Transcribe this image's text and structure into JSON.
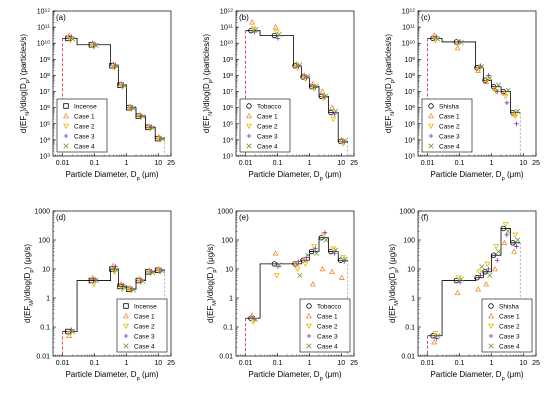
{
  "markers": {
    "base": {
      "shape": "square",
      "color": "#000000"
    },
    "case1": {
      "shape": "triangle-up",
      "color": "#f28e2b"
    },
    "case2": {
      "shape": "triangle-down",
      "color": "#e6b800"
    },
    "case3": {
      "shape": "plus",
      "color": "#7b2fbe"
    },
    "case4": {
      "shape": "x",
      "color": "#6a9e3a"
    }
  },
  "chart_data": [
    {
      "type": "line",
      "label": "(a)",
      "ylabel": "d(EF_N)/dlog(D_p) (particles/s)",
      "xlabel": "Particle Diameter, D_p (μm)",
      "xscale": "log",
      "yscale": "log",
      "xlim": [
        0.005,
        25
      ],
      "ylim": [
        1000,
        1000000000000.0
      ],
      "xticks": [
        "0.01",
        "0.1",
        "1",
        "10",
        "25"
      ],
      "yticks": [
        "10^3",
        "10^4",
        "10^5",
        "10^6",
        "10^7",
        "10^8",
        "10^9",
        "10^10",
        "10^11",
        "10^12"
      ],
      "step_edges": [
        0.01,
        0.0284,
        0.32,
        0.56,
        1.0,
        2.0,
        4.0,
        8.0,
        16.0
      ],
      "step_values": [
        20000000000.0,
        8000000000.0,
        400000000.0,
        25000000.0,
        1000000.0,
        300000.0,
        60000.0,
        12000.0
      ],
      "base_name": "Incense",
      "x": [
        0.0175,
        0.095,
        0.42,
        0.75,
        1.4,
        2.8,
        5.6,
        11.3
      ],
      "series": [
        {
          "name": "Incense",
          "values": [
            20000000000.0,
            8000000000.0,
            400000000.0,
            25000000.0,
            1000000.0,
            300000.0,
            60000.0,
            12000.0
          ]
        },
        {
          "name": "Case 1",
          "values": [
            30000000000.0,
            10000000000.0,
            500000000.0,
            30000000.0,
            1200000.0,
            350000.0,
            70000.0,
            15000.0
          ]
        },
        {
          "name": "Case 2",
          "values": [
            15000000000.0,
            6000000000.0,
            300000000.0,
            20000000.0,
            800000.0,
            250000.0,
            50000.0,
            10000.0
          ]
        },
        {
          "name": "Case 3",
          "values": [
            25000000000.0,
            9000000000.0,
            450000000.0,
            27000000.0,
            1100000.0,
            320000.0,
            65000.0,
            13000.0
          ]
        },
        {
          "name": "Case 4",
          "values": [
            18000000000.0,
            7000000000.0,
            350000000.0,
            22000000.0,
            900000.0,
            280000.0,
            55000.0,
            11000.0
          ]
        }
      ],
      "legend": [
        "Incense",
        "Case 1",
        "Case 2",
        "Case 3",
        "Case 4"
      ],
      "legend_position": "bottom-left"
    },
    {
      "type": "line",
      "label": "(b)",
      "ylabel": "d(EF_N)/dlog(D_p) (particles/s)",
      "xlabel": "Particle Diameter, D_p (μm)",
      "xscale": "log",
      "yscale": "log",
      "xlim": [
        0.005,
        25
      ],
      "ylim": [
        1000,
        1000000000000.0
      ],
      "xticks": [
        "0.01",
        "0.1",
        "1",
        "10",
        "25"
      ],
      "yticks": [
        "10^3",
        "10^4",
        "10^5",
        "10^6",
        "10^7",
        "10^8",
        "10^9",
        "10^10",
        "10^11",
        "10^12"
      ],
      "step_edges": [
        0.01,
        0.0284,
        0.32,
        0.56,
        1.0,
        2.0,
        4.0,
        8.0,
        16.0
      ],
      "step_values": [
        60000000000.0,
        30000000000.0,
        400000000.0,
        80000000.0,
        20000000.0,
        5000000.0,
        500000.0,
        8000.0
      ],
      "base_name": "Tobacco",
      "x": [
        0.0175,
        0.095,
        0.42,
        0.75,
        1.4,
        2.8,
        5.6,
        11.3
      ],
      "series": [
        {
          "name": "Tobacco",
          "values": [
            60000000000.0,
            30000000000.0,
            400000000.0,
            80000000.0,
            20000000.0,
            5000000.0,
            500000.0,
            8000.0
          ]
        },
        {
          "name": "Case 1",
          "values": [
            200000000000.0,
            100000000000.0,
            500000000.0,
            100000000.0,
            30000000.0,
            10000000.0,
            1000000.0,
            10000.0
          ]
        },
        {
          "name": "Case 2",
          "values": [
            80000000000.0,
            50000000000.0,
            300000000.0,
            60000000.0,
            15000000.0,
            4000000.0,
            200000.0,
            6000.0
          ]
        },
        {
          "name": "Case 3",
          "values": [
            50000000000.0,
            20000000000.0,
            350000000.0,
            70000000.0,
            18000000.0,
            4500000.0,
            400000.0,
            7000.0
          ]
        },
        {
          "name": "Case 4",
          "values": [
            70000000000.0,
            35000000000.0,
            450000000.0,
            90000000.0,
            22000000.0,
            5500000.0,
            600000.0,
            9000.0
          ]
        }
      ],
      "legend": [
        "Tobacco",
        "Case 1",
        "Case 2",
        "Case 3",
        "Case 4"
      ],
      "legend_position": "bottom-left"
    },
    {
      "type": "line",
      "label": "(c)",
      "ylabel": "d(EF_N)/dlog(D_p) (particles/s)",
      "xlabel": "Particle Diameter, D_p (μm)",
      "xscale": "log",
      "yscale": "log",
      "xlim": [
        0.005,
        25
      ],
      "ylim": [
        1000,
        1000000000000.0
      ],
      "xticks": [
        "0.01",
        "0.1",
        "1",
        "10",
        "25"
      ],
      "yticks": [
        "10^3",
        "10^4",
        "10^5",
        "10^6",
        "10^7",
        "10^8",
        "10^9",
        "10^10",
        "10^11",
        "10^12"
      ],
      "step_edges": [
        0.01,
        0.0284,
        0.32,
        0.56,
        1.0,
        2.0,
        4.0,
        8.0
      ],
      "step_values": [
        20000000000.0,
        12000000000.0,
        300000000.0,
        50000000.0,
        20000000.0,
        10000000.0,
        500000.0
      ],
      "base_name": "Shisha",
      "x": [
        0.0175,
        0.095,
        0.42,
        0.75,
        1.4,
        2.8,
        5.6
      ],
      "series": [
        {
          "name": "Shisha",
          "values": [
            20000000000.0,
            12000000000.0,
            300000000.0,
            50000000.0,
            20000000.0,
            10000000.0,
            500000.0
          ]
        },
        {
          "name": "Case 1",
          "values": [
            30000000000.0,
            5000000000.0,
            200000000.0,
            40000000.0,
            15000000.0,
            8000000.0,
            400000.0
          ]
        },
        {
          "name": "Case 2",
          "values": [
            15000000000.0,
            10000000000.0,
            250000000.0,
            60000000.0,
            10000000.0,
            5000000.0,
            300000.0
          ]
        },
        {
          "name": "Case 3",
          "values": [
            25000000000.0,
            13000000000.0,
            400000000.0,
            100000000.0,
            10000000.0,
            2000000.0,
            100000.0
          ]
        },
        {
          "name": "Case 4",
          "values": [
            18000000000.0,
            11000000000.0,
            350000000.0,
            70000000.0,
            25000000.0,
            12000000.0,
            600000.0
          ]
        }
      ],
      "legend": [
        "Shisha",
        "Case 1",
        "Case 2",
        "Case 3",
        "Case 4"
      ],
      "legend_position": "bottom-left"
    },
    {
      "type": "line",
      "label": "(d)",
      "ylabel": "d(EF_M)/dlog(D_p) (μg/s)",
      "xlabel": "Particle Diameter, D_p (μm)",
      "xscale": "log",
      "yscale": "log",
      "xlim": [
        0.005,
        25
      ],
      "ylim": [
        0.01,
        1000
      ],
      "xticks": [
        "0.01",
        "0.1",
        "1",
        "10",
        "25"
      ],
      "yticks": [
        "0.01",
        "0.1",
        "1",
        "10",
        "100",
        "1000"
      ],
      "step_edges": [
        0.01,
        0.0284,
        0.32,
        0.56,
        1.0,
        2.0,
        4.0,
        8.0,
        16.0
      ],
      "step_values": [
        0.07,
        4,
        10,
        2.5,
        2,
        4,
        8,
        9
      ],
      "base_name": "Incense",
      "x": [
        0.0175,
        0.095,
        0.42,
        0.75,
        1.4,
        2.8,
        5.6,
        11.3
      ],
      "series": [
        {
          "name": "Incense",
          "values": [
            0.07,
            4,
            10,
            2.5,
            2,
            4,
            8,
            9
          ]
        },
        {
          "name": "Case 1",
          "values": [
            0.05,
            5,
            13,
            3,
            2.2,
            4.5,
            9,
            10
          ]
        },
        {
          "name": "Case 2",
          "values": [
            0.06,
            3,
            8,
            2,
            1.8,
            3.5,
            7,
            8
          ]
        },
        {
          "name": "Case 3",
          "values": [
            0.08,
            4.5,
            12,
            2.8,
            2.1,
            4.2,
            8.5,
            9.5
          ]
        },
        {
          "name": "Case 4",
          "values": [
            0.07,
            4,
            9,
            2.3,
            1.9,
            3.8,
            7.5,
            8.5
          ]
        }
      ],
      "legend": [
        "Incense",
        "Case 1",
        "Case 2",
        "Case 3",
        "Case 4"
      ],
      "legend_position": "bottom-right"
    },
    {
      "type": "line",
      "label": "(e)",
      "ylabel": "d(EF_M)/dlog(D_p) (μg/s)",
      "xlabel": "Particle Diameter, D_p (μm)",
      "xscale": "log",
      "yscale": "log",
      "xlim": [
        0.005,
        25
      ],
      "ylim": [
        0.01,
        1000
      ],
      "xticks": [
        "0.01",
        "0.1",
        "1",
        "10",
        "25"
      ],
      "yticks": [
        "0.01",
        "0.1",
        "1",
        "10",
        "100",
        "1000"
      ],
      "step_edges": [
        0.01,
        0.0284,
        0.32,
        0.56,
        1.0,
        2.0,
        4.0,
        8.0,
        16.0
      ],
      "step_values": [
        0.2,
        15,
        15,
        20,
        40,
        120,
        40,
        20
      ],
      "base_name": "Tobacco",
      "x": [
        0.0175,
        0.095,
        0.42,
        0.75,
        1.4,
        2.8,
        5.6,
        11.3
      ],
      "series": [
        {
          "name": "Tobacco",
          "values": [
            0.2,
            15,
            15,
            20,
            40,
            120,
            40,
            20
          ]
        },
        {
          "name": "Case 1",
          "values": [
            0.25,
            35,
            15,
            20,
            3,
            10,
            8,
            5
          ]
        },
        {
          "name": "Case 2",
          "values": [
            0.15,
            6,
            10,
            15,
            60,
            150,
            50,
            25
          ]
        },
        {
          "name": "Case 3",
          "values": [
            0.2,
            12,
            18,
            25,
            50,
            180,
            35,
            18
          ]
        },
        {
          "name": "Case 4",
          "values": [
            0.18,
            14,
            6,
            30,
            35,
            100,
            45,
            22
          ]
        }
      ],
      "legend": [
        "Tobacco",
        "Case 1",
        "Case 2",
        "Case 3",
        "Case 4"
      ],
      "legend_position": "bottom-right"
    },
    {
      "type": "line",
      "label": "(f)",
      "ylabel": "d(EF_M)/dlog(D_p) (μg/s)",
      "xlabel": "Particle Diameter, D_p (μm)",
      "xscale": "log",
      "yscale": "log",
      "xlim": [
        0.005,
        25
      ],
      "ylim": [
        0.01,
        1000
      ],
      "xticks": [
        "0.01",
        "0.1",
        "1",
        "10",
        "25"
      ],
      "yticks": [
        "0.01",
        "0.1",
        "1",
        "10",
        "100",
        "1000"
      ],
      "step_edges": [
        0.01,
        0.0284,
        0.32,
        0.56,
        1.0,
        2.0,
        4.0,
        8.0
      ],
      "step_values": [
        0.05,
        4,
        5,
        8,
        30,
        250,
        80
      ],
      "base_name": "Shisha",
      "x": [
        0.0175,
        0.095,
        0.42,
        0.75,
        1.4,
        2.8,
        5.6
      ],
      "series": [
        {
          "name": "Shisha",
          "values": [
            0.05,
            4,
            5,
            8,
            30,
            250,
            80
          ]
        },
        {
          "name": "Case 1",
          "values": [
            0.03,
            1.5,
            2,
            3,
            10,
            80,
            40
          ]
        },
        {
          "name": "Case 2",
          "values": [
            0.06,
            5,
            8,
            15,
            60,
            350,
            150
          ]
        },
        {
          "name": "Case 3",
          "values": [
            0.04,
            3.5,
            6,
            10,
            20,
            150,
            60
          ]
        },
        {
          "name": "Case 4",
          "values": [
            0.05,
            4.5,
            12,
            6,
            40,
            200,
            100
          ]
        }
      ],
      "legend": [
        "Shisha",
        "Case 1",
        "Case 2",
        "Case 3",
        "Case 4"
      ],
      "legend_position": "bottom-right"
    }
  ]
}
